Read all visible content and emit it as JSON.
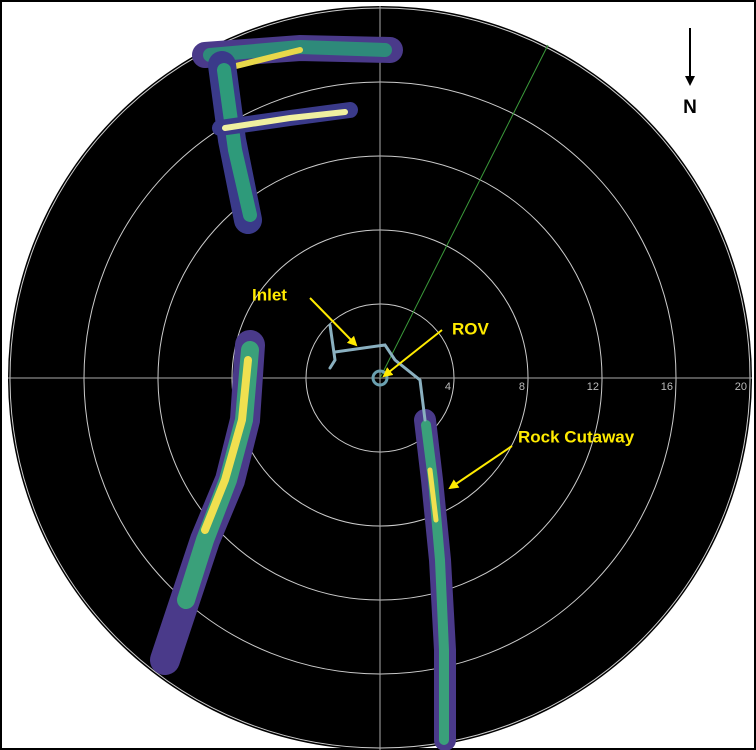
{
  "range_rings": [
    4,
    8,
    12,
    16,
    20
  ],
  "annotations": {
    "inlet": "Inlet",
    "rov": "ROV",
    "rock_cutaway": "Rock Cutaway"
  },
  "compass": "N"
}
